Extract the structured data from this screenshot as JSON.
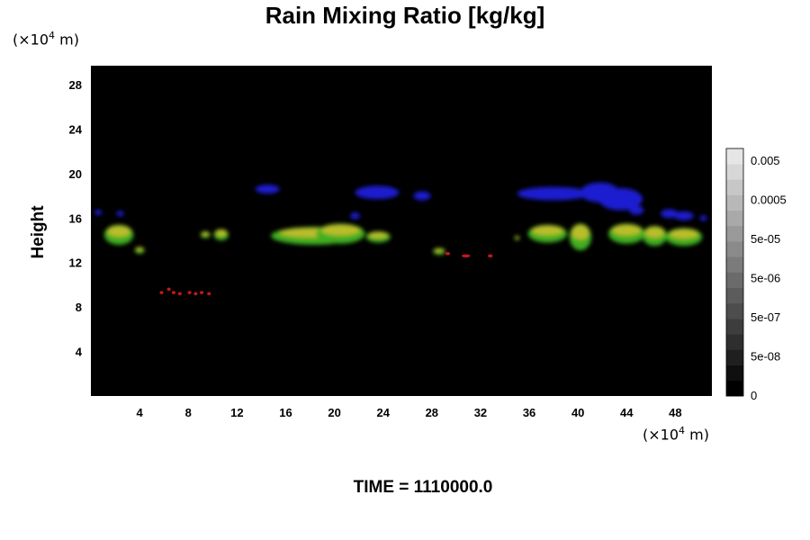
{
  "title": "Rain Mixing Ratio [kg/kg]",
  "unit_y": {
    "prefix": "(×10",
    "exp": "4",
    "suffix": " m)"
  },
  "unit_x": {
    "prefix": "(×10",
    "exp": "4",
    "suffix": " m)"
  },
  "footer": "TIME = 1110000.0",
  "colors": {
    "background": "#000000",
    "page": "#ffffff",
    "high": "#1a1ad0",
    "mid": "#3fae20",
    "warm": "#d8c030",
    "low": "#c01818"
  },
  "chart_data": {
    "type": "heatmap",
    "title": "Rain Mixing Ratio [kg/kg]",
    "xlabel": "",
    "ylabel": "Height",
    "xlim": [
      0,
      51
    ],
    "ylim": [
      0,
      29.7
    ],
    "xticks": [
      4,
      8,
      12,
      16,
      20,
      24,
      28,
      32,
      36,
      40,
      44,
      48
    ],
    "yticks": [
      4,
      8,
      12,
      16,
      20,
      24,
      28
    ],
    "colorbar": {
      "labels": [
        "0.005",
        "0.0005",
        "5e-05",
        "5e-06",
        "5e-07",
        "5e-08",
        "0"
      ],
      "levels": 16
    },
    "regions": [
      {
        "name": "upper",
        "color": "#1a1ad0",
        "blobs": [
          [
            14.5,
            18.6,
            1.0,
            0.4
          ],
          [
            23.5,
            18.3,
            1.8,
            0.6
          ],
          [
            27.2,
            18.0,
            0.7,
            0.4
          ],
          [
            38.0,
            18.2,
            3.0,
            0.6
          ],
          [
            41.8,
            18.3,
            1.6,
            0.9
          ],
          [
            43.5,
            17.7,
            1.8,
            1.0
          ],
          [
            44.8,
            16.7,
            0.6,
            0.4
          ],
          [
            47.5,
            16.4,
            0.7,
            0.4
          ],
          [
            48.7,
            16.2,
            0.8,
            0.4
          ],
          [
            0.6,
            16.5,
            0.3,
            0.25
          ],
          [
            2.4,
            16.4,
            0.3,
            0.25
          ],
          [
            21.7,
            16.2,
            0.4,
            0.3
          ],
          [
            50.3,
            16.0,
            0.3,
            0.25
          ]
        ]
      },
      {
        "name": "middle",
        "color": "#3fae20",
        "blobs": [
          [
            2.3,
            14.5,
            1.2,
            0.9
          ],
          [
            4.0,
            13.1,
            0.4,
            0.3
          ],
          [
            9.4,
            14.5,
            0.4,
            0.3
          ],
          [
            10.7,
            14.5,
            0.6,
            0.5
          ],
          [
            18.3,
            14.4,
            3.5,
            0.8
          ],
          [
            20.5,
            14.6,
            2.0,
            0.9
          ],
          [
            23.6,
            14.3,
            1.0,
            0.5
          ],
          [
            28.6,
            13.0,
            0.5,
            0.3
          ],
          [
            37.5,
            14.6,
            1.6,
            0.8
          ],
          [
            40.2,
            14.3,
            0.9,
            1.2
          ],
          [
            44.0,
            14.6,
            1.5,
            0.9
          ],
          [
            46.3,
            14.4,
            1.0,
            0.9
          ],
          [
            48.7,
            14.3,
            1.5,
            0.8
          ],
          [
            35.0,
            14.2,
            0.2,
            0.2
          ]
        ]
      },
      {
        "name": "low",
        "color": "#c01818",
        "blobs": [
          [
            5.8,
            9.3,
            0.15,
            0.15
          ],
          [
            6.4,
            9.6,
            0.15,
            0.15
          ],
          [
            6.8,
            9.3,
            0.15,
            0.15
          ],
          [
            7.3,
            9.2,
            0.15,
            0.15
          ],
          [
            8.1,
            9.3,
            0.15,
            0.15
          ],
          [
            8.6,
            9.2,
            0.15,
            0.15
          ],
          [
            9.1,
            9.3,
            0.15,
            0.15
          ],
          [
            9.7,
            9.2,
            0.15,
            0.15
          ],
          [
            29.3,
            12.8,
            0.2,
            0.15
          ],
          [
            30.8,
            12.6,
            0.35,
            0.15
          ],
          [
            32.8,
            12.6,
            0.2,
            0.15
          ]
        ]
      }
    ]
  }
}
